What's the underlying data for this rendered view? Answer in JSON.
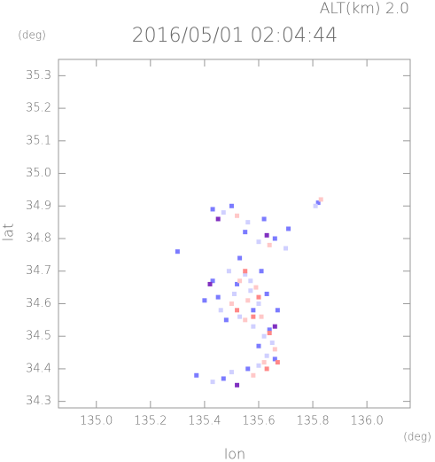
{
  "chart_data": {
    "type": "scatter",
    "title": "2016/05/01 02:04:44",
    "subtitle": "ALT(km) 2.0",
    "x_label": "lon",
    "y_label": "lat",
    "x_unit": "(deg)",
    "y_unit": "(deg)",
    "xlim": [
      134.86,
      136.16
    ],
    "ylim": [
      34.28,
      35.35
    ],
    "xticks": [
      {
        "value": 135.0,
        "label": "135.0"
      },
      135.2,
      135.4,
      135.6,
      135.8,
      {
        "value": 136.0,
        "label": "136.0"
      }
    ],
    "yticks": [
      34.3,
      34.4,
      34.5,
      34.6,
      34.7,
      34.8,
      34.9,
      {
        "value": 35.0,
        "label": "35.0"
      },
      35.1,
      35.2,
      35.3
    ],
    "series": [
      {
        "color": "#7b7bff",
        "x": [
          135.43,
          135.5,
          135.62,
          135.82,
          135.55,
          135.66,
          135.71,
          135.43,
          135.52,
          135.63,
          135.4,
          135.58,
          135.48,
          135.64,
          135.6,
          135.66,
          135.56,
          135.37,
          135.47,
          135.3,
          135.53,
          135.61,
          135.45,
          135.67
        ],
        "y": [
          34.89,
          34.9,
          34.86,
          34.91,
          34.82,
          34.8,
          34.83,
          34.67,
          34.66,
          34.63,
          34.61,
          34.58,
          34.55,
          34.52,
          34.47,
          34.43,
          34.4,
          34.38,
          34.37,
          34.76,
          34.74,
          34.7,
          34.62,
          34.58
        ]
      },
      {
        "color": "#d0d0ff",
        "x": [
          135.47,
          135.56,
          135.81,
          135.6,
          135.7,
          135.49,
          135.55,
          135.51,
          135.57,
          135.6,
          135.46,
          135.53,
          135.58,
          135.62,
          135.63,
          135.6,
          135.5,
          135.43,
          135.57,
          135.65
        ],
        "y": [
          34.88,
          34.85,
          34.9,
          34.79,
          34.77,
          34.7,
          34.69,
          34.63,
          34.64,
          34.6,
          34.58,
          34.56,
          34.53,
          34.5,
          34.44,
          34.41,
          34.39,
          34.36,
          34.67,
          34.48
        ]
      },
      {
        "color": "#ffc8c8",
        "x": [
          135.52,
          135.83,
          135.64,
          135.53,
          135.56,
          135.61,
          135.55,
          135.66,
          135.62,
          135.58,
          135.5,
          135.59
        ],
        "y": [
          34.87,
          34.92,
          34.78,
          34.67,
          34.61,
          34.56,
          34.55,
          34.46,
          34.42,
          34.38,
          34.6,
          34.65
        ]
      },
      {
        "color": "#ff8888",
        "x": [
          135.6,
          135.58,
          135.64,
          135.67,
          135.63,
          135.55,
          135.52
        ],
        "y": [
          34.62,
          34.56,
          34.51,
          34.42,
          34.4,
          34.7,
          34.58
        ]
      },
      {
        "color": "#8030c0",
        "x": [
          135.45,
          135.63,
          135.42,
          135.52,
          135.66
        ],
        "y": [
          34.86,
          34.81,
          34.66,
          34.35,
          34.53
        ]
      }
    ]
  }
}
